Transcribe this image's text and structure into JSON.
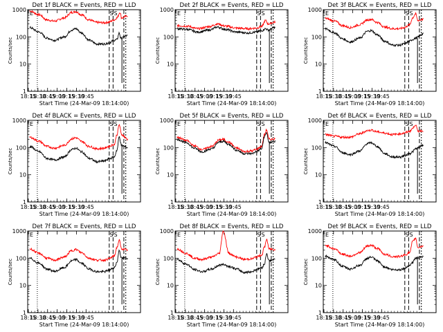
{
  "chart_data": {
    "type": "line",
    "yscale": "log",
    "ylim": [
      1,
      1000
    ],
    "xlim": [
      0,
      2.933
    ],
    "x_ticks": [
      "18:15",
      "18:30",
      "18:45",
      "19:00",
      "19:15",
      "19:30",
      "19:45"
    ],
    "y_ticks": [
      "1",
      "10",
      "100",
      "1000"
    ],
    "ylabel": "Counts/sec",
    "xlabel": "Start Time (24-Mar-09 18:14:00)",
    "colors": {
      "events": "#000000",
      "lld": "#ff0000"
    },
    "panels": [
      {
        "title": "Det 1f BLACK = Events, RED = LLD",
        "flags": [
          "E",
          "S",
          "S"
        ],
        "events": [
          [
            0.05,
            220
          ],
          [
            0.3,
            150
          ],
          [
            0.5,
            90
          ],
          [
            0.7,
            75
          ],
          [
            0.95,
            100
          ],
          [
            1.15,
            180
          ],
          [
            1.25,
            200
          ],
          [
            1.4,
            140
          ],
          [
            1.6,
            75
          ],
          [
            1.8,
            55
          ],
          [
            2.0,
            55
          ],
          [
            2.1,
            60
          ],
          [
            2.25,
            75
          ],
          [
            2.32,
            80
          ],
          [
            2.38,
            140
          ],
          [
            2.42,
            90
          ],
          [
            2.6,
            110
          ]
        ],
        "lld": [
          [
            0.05,
            900
          ],
          [
            0.3,
            650
          ],
          [
            0.5,
            420
          ],
          [
            0.7,
            380
          ],
          [
            0.95,
            500
          ],
          [
            1.15,
            800
          ],
          [
            1.25,
            850
          ],
          [
            1.4,
            650
          ],
          [
            1.6,
            420
          ],
          [
            1.8,
            340
          ],
          [
            2.0,
            330
          ],
          [
            2.1,
            350
          ],
          [
            2.25,
            420
          ],
          [
            2.32,
            500
          ],
          [
            2.4,
            800
          ],
          [
            2.44,
            500
          ],
          [
            2.6,
            600
          ]
        ]
      },
      {
        "title": "Det 2f BLACK = Events, RED = LLD",
        "flags": [
          "E",
          "S",
          "S"
        ],
        "events": [
          [
            0.05,
            200
          ],
          [
            0.3,
            190
          ],
          [
            0.6,
            150
          ],
          [
            0.9,
            180
          ],
          [
            1.1,
            230
          ],
          [
            1.3,
            190
          ],
          [
            1.6,
            150
          ],
          [
            1.9,
            140
          ],
          [
            2.1,
            150
          ],
          [
            2.25,
            170
          ],
          [
            2.35,
            200
          ],
          [
            2.42,
            180
          ],
          [
            2.6,
            220
          ]
        ],
        "lld": [
          [
            0.05,
            260
          ],
          [
            0.3,
            250
          ],
          [
            0.6,
            200
          ],
          [
            0.9,
            240
          ],
          [
            1.1,
            300
          ],
          [
            1.3,
            250
          ],
          [
            1.6,
            210
          ],
          [
            1.9,
            200
          ],
          [
            2.1,
            210
          ],
          [
            2.25,
            240
          ],
          [
            2.35,
            400
          ],
          [
            2.42,
            300
          ],
          [
            2.6,
            350
          ]
        ]
      },
      {
        "title": "Det 3f BLACK = Events, RED = LLD",
        "flags": [
          "E",
          "S",
          "S"
        ],
        "events": [
          [
            0.05,
            200
          ],
          [
            0.3,
            140
          ],
          [
            0.5,
            85
          ],
          [
            0.7,
            65
          ],
          [
            0.95,
            90
          ],
          [
            1.15,
            160
          ],
          [
            1.25,
            170
          ],
          [
            1.4,
            120
          ],
          [
            1.6,
            70
          ],
          [
            1.8,
            50
          ],
          [
            2.0,
            50
          ],
          [
            2.1,
            55
          ],
          [
            2.25,
            70
          ],
          [
            2.32,
            80
          ],
          [
            2.4,
            90
          ],
          [
            2.6,
            130
          ]
        ],
        "lld": [
          [
            0.05,
            480
          ],
          [
            0.3,
            380
          ],
          [
            0.5,
            260
          ],
          [
            0.7,
            220
          ],
          [
            0.95,
            280
          ],
          [
            1.15,
            420
          ],
          [
            1.25,
            440
          ],
          [
            1.4,
            340
          ],
          [
            1.6,
            230
          ],
          [
            1.8,
            200
          ],
          [
            2.0,
            200
          ],
          [
            2.1,
            220
          ],
          [
            2.25,
            280
          ],
          [
            2.32,
            500
          ],
          [
            2.4,
            700
          ],
          [
            2.46,
            400
          ],
          [
            2.6,
            450
          ]
        ]
      },
      {
        "title": "Det 4f BLACK = Events, RED = LLD",
        "flags": [
          "E",
          "S",
          "S"
        ],
        "events": [
          [
            0.05,
            110
          ],
          [
            0.3,
            70
          ],
          [
            0.5,
            40
          ],
          [
            0.7,
            35
          ],
          [
            0.95,
            45
          ],
          [
            1.15,
            85
          ],
          [
            1.25,
            95
          ],
          [
            1.4,
            70
          ],
          [
            1.6,
            40
          ],
          [
            1.8,
            30
          ],
          [
            2.0,
            32
          ],
          [
            2.1,
            38
          ],
          [
            2.25,
            45
          ],
          [
            2.32,
            80
          ],
          [
            2.38,
            250
          ],
          [
            2.44,
            120
          ],
          [
            2.6,
            100
          ]
        ],
        "lld": [
          [
            0.05,
            240
          ],
          [
            0.3,
            170
          ],
          [
            0.5,
            110
          ],
          [
            0.7,
            95
          ],
          [
            0.95,
            120
          ],
          [
            1.15,
            210
          ],
          [
            1.25,
            230
          ],
          [
            1.4,
            170
          ],
          [
            1.6,
            110
          ],
          [
            1.8,
            90
          ],
          [
            2.0,
            95
          ],
          [
            2.1,
            110
          ],
          [
            2.25,
            130
          ],
          [
            2.32,
            300
          ],
          [
            2.38,
            700
          ],
          [
            2.44,
            300
          ],
          [
            2.6,
            200
          ]
        ]
      },
      {
        "title": "Det 5f BLACK = Events, RED = LLD",
        "flags": [
          "E",
          "S",
          "S"
        ],
        "events": [
          [
            0.05,
            200
          ],
          [
            0.3,
            150
          ],
          [
            0.5,
            95
          ],
          [
            0.7,
            70
          ],
          [
            0.95,
            90
          ],
          [
            1.15,
            160
          ],
          [
            1.25,
            170
          ],
          [
            1.4,
            130
          ],
          [
            1.6,
            80
          ],
          [
            1.8,
            60
          ],
          [
            2.0,
            60
          ],
          [
            2.1,
            70
          ],
          [
            2.25,
            90
          ],
          [
            2.32,
            250
          ],
          [
            2.38,
            350
          ],
          [
            2.44,
            150
          ],
          [
            2.6,
            170
          ]
        ],
        "lld": [
          [
            0.05,
            240
          ],
          [
            0.3,
            180
          ],
          [
            0.5,
            115
          ],
          [
            0.7,
            85
          ],
          [
            0.95,
            110
          ],
          [
            1.15,
            190
          ],
          [
            1.25,
            200
          ],
          [
            1.4,
            155
          ],
          [
            1.6,
            95
          ],
          [
            1.8,
            72
          ],
          [
            2.0,
            75
          ],
          [
            2.1,
            85
          ],
          [
            2.25,
            110
          ],
          [
            2.32,
            300
          ],
          [
            2.38,
            450
          ],
          [
            2.44,
            200
          ],
          [
            2.6,
            210
          ]
        ]
      },
      {
        "title": "Det 6f BLACK = Events, RED = LLD",
        "flags": [
          "E",
          "S",
          "S"
        ],
        "events": [
          [
            0.05,
            150
          ],
          [
            0.3,
            110
          ],
          [
            0.5,
            65
          ],
          [
            0.7,
            55
          ],
          [
            0.95,
            75
          ],
          [
            1.15,
            140
          ],
          [
            1.25,
            150
          ],
          [
            1.4,
            110
          ],
          [
            1.6,
            60
          ],
          [
            1.8,
            45
          ],
          [
            2.0,
            45
          ],
          [
            2.1,
            50
          ],
          [
            2.25,
            60
          ],
          [
            2.32,
            70
          ],
          [
            2.4,
            90
          ],
          [
            2.6,
            120
          ]
        ],
        "lld": [
          [
            0.05,
            300
          ],
          [
            0.3,
            260
          ],
          [
            0.5,
            240
          ],
          [
            0.7,
            240
          ],
          [
            0.95,
            320
          ],
          [
            1.15,
            420
          ],
          [
            1.25,
            440
          ],
          [
            1.4,
            380
          ],
          [
            1.6,
            340
          ],
          [
            1.8,
            300
          ],
          [
            2.0,
            320
          ],
          [
            2.1,
            340
          ],
          [
            2.25,
            400
          ],
          [
            2.32,
            500
          ],
          [
            2.4,
            700
          ],
          [
            2.46,
            400
          ],
          [
            2.6,
            420
          ]
        ]
      },
      {
        "title": "Det 7f BLACK = Events, RED = LLD",
        "flags": [
          "E",
          "S",
          "S"
        ],
        "events": [
          [
            0.05,
            100
          ],
          [
            0.3,
            65
          ],
          [
            0.5,
            40
          ],
          [
            0.7,
            33
          ],
          [
            0.95,
            45
          ],
          [
            1.15,
            80
          ],
          [
            1.25,
            90
          ],
          [
            1.4,
            65
          ],
          [
            1.6,
            40
          ],
          [
            1.8,
            32
          ],
          [
            2.0,
            32
          ],
          [
            2.1,
            36
          ],
          [
            2.25,
            45
          ],
          [
            2.32,
            70
          ],
          [
            2.38,
            200
          ],
          [
            2.44,
            100
          ],
          [
            2.6,
            100
          ]
        ],
        "lld": [
          [
            0.05,
            220
          ],
          [
            0.3,
            150
          ],
          [
            0.5,
            100
          ],
          [
            0.7,
            85
          ],
          [
            0.95,
            110
          ],
          [
            1.15,
            190
          ],
          [
            1.25,
            210
          ],
          [
            1.4,
            160
          ],
          [
            1.6,
            100
          ],
          [
            1.8,
            85
          ],
          [
            2.0,
            85
          ],
          [
            2.1,
            95
          ],
          [
            2.25,
            120
          ],
          [
            2.32,
            250
          ],
          [
            2.38,
            450
          ],
          [
            2.44,
            220
          ],
          [
            2.6,
            200
          ]
        ]
      },
      {
        "title": "Det 8f BLACK = Events, RED = LLD",
        "flags": [
          "E",
          "S",
          "S"
        ],
        "events": [
          [
            0.05,
            90
          ],
          [
            0.3,
            60
          ],
          [
            0.5,
            38
          ],
          [
            0.7,
            32
          ],
          [
            0.95,
            40
          ],
          [
            1.15,
            55
          ],
          [
            1.25,
            60
          ],
          [
            1.4,
            50
          ],
          [
            1.6,
            40
          ],
          [
            1.8,
            30
          ],
          [
            2.0,
            32
          ],
          [
            2.1,
            38
          ],
          [
            2.25,
            45
          ],
          [
            2.32,
            60
          ],
          [
            2.38,
            150
          ],
          [
            2.44,
            80
          ],
          [
            2.6,
            90
          ]
        ],
        "lld": [
          [
            0.05,
            220
          ],
          [
            0.3,
            150
          ],
          [
            0.5,
            100
          ],
          [
            0.7,
            90
          ],
          [
            0.95,
            110
          ],
          [
            1.15,
            150
          ],
          [
            1.25,
            1000
          ],
          [
            1.4,
            150
          ],
          [
            1.6,
            110
          ],
          [
            1.8,
            90
          ],
          [
            2.0,
            95
          ],
          [
            2.1,
            110
          ],
          [
            2.25,
            130
          ],
          [
            2.32,
            250
          ],
          [
            2.38,
            500
          ],
          [
            2.44,
            220
          ],
          [
            2.6,
            210
          ]
        ]
      },
      {
        "title": "Det 9f BLACK = Events, RED = LLD",
        "flags": [
          "E",
          "S",
          "S"
        ],
        "events": [
          [
            0.05,
            120
          ],
          [
            0.3,
            85
          ],
          [
            0.5,
            50
          ],
          [
            0.7,
            40
          ],
          [
            0.95,
            55
          ],
          [
            1.15,
            100
          ],
          [
            1.25,
            110
          ],
          [
            1.4,
            80
          ],
          [
            1.6,
            48
          ],
          [
            1.8,
            38
          ],
          [
            2.0,
            38
          ],
          [
            2.1,
            42
          ],
          [
            2.25,
            55
          ],
          [
            2.32,
            70
          ],
          [
            2.4,
            100
          ],
          [
            2.6,
            110
          ]
        ],
        "lld": [
          [
            0.05,
            300
          ],
          [
            0.3,
            220
          ],
          [
            0.5,
            140
          ],
          [
            0.7,
            120
          ],
          [
            0.95,
            160
          ],
          [
            1.15,
            280
          ],
          [
            1.25,
            300
          ],
          [
            1.4,
            230
          ],
          [
            1.6,
            140
          ],
          [
            1.8,
            115
          ],
          [
            2.0,
            115
          ],
          [
            2.1,
            130
          ],
          [
            2.25,
            160
          ],
          [
            2.32,
            400
          ],
          [
            2.4,
            550
          ],
          [
            2.46,
            250
          ],
          [
            2.6,
            280
          ]
        ]
      }
    ]
  }
}
